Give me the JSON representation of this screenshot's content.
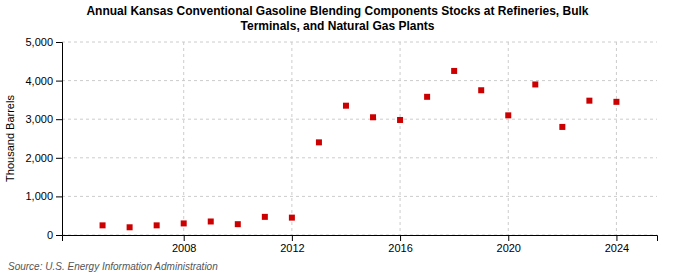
{
  "chart_data": {
    "type": "scatter",
    "title": "Annual Kansas Conventional Gasoline Blending Components Stocks at Refineries, Bulk\nTerminals, and Natural Gas Plants",
    "ylabel": "Thousand Barrels",
    "source": "Source: U.S. Energy Information Administration",
    "x": [
      2005,
      2006,
      2007,
      2008,
      2009,
      2010,
      2011,
      2012,
      2013,
      2014,
      2015,
      2016,
      2017,
      2018,
      2019,
      2020,
      2021,
      2022,
      2023,
      2024
    ],
    "values": [
      250,
      200,
      250,
      300,
      350,
      280,
      470,
      450,
      2400,
      3350,
      3050,
      2980,
      3580,
      4250,
      3750,
      3100,
      3900,
      2800,
      3480,
      3450
    ],
    "color": "#cc0000",
    "marker": "square",
    "xlim": [
      2003.5,
      2025.5
    ],
    "xticks": [
      2008,
      2012,
      2016,
      2020,
      2024
    ],
    "ylim": [
      0,
      5000
    ],
    "yticks": [
      0,
      {
        "value": 1000,
        "label": "1,000"
      },
      {
        "value": 2000,
        "label": "2,000"
      },
      {
        "value": 3000,
        "label": "3,000"
      },
      {
        "value": 4000,
        "label": "4,000"
      },
      {
        "value": 5000,
        "label": "5,000"
      }
    ],
    "grid": true
  }
}
